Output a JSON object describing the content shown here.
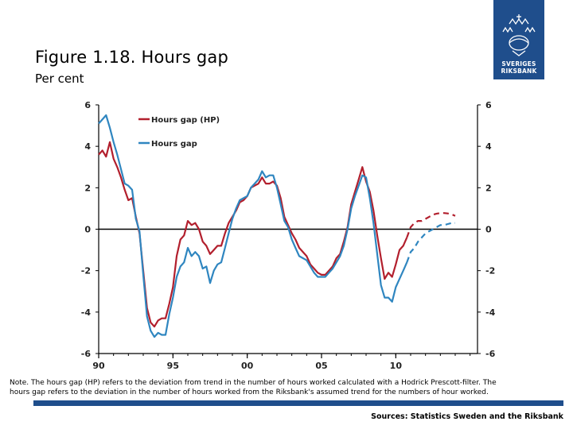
{
  "header": {
    "title": "Figure 1.18. Hours gap",
    "subtitle": "Per cent"
  },
  "logo": {
    "line1": "SVERIGES",
    "line2": "RIKSBANK"
  },
  "footer": {
    "note": "Note. The hours gap (HP) refers to the deviation from trend in the number of hours worked calculated with a Hodrick Prescott-filter. The hours gap refers to the deviation in the number of hours worked from the Riksbank's assumed trend for the numbers of hour worked.",
    "source": "Sources: Statistics Sweden and the Riksbank"
  },
  "colors": {
    "hp": "#b21f2d",
    "gap": "#2f86c0",
    "brand": "#1f4e8c"
  },
  "chart_data": {
    "type": "line",
    "title": "Figure 1.18. Hours gap",
    "ylabel": "Per cent",
    "xlim": [
      1990,
      2015.5
    ],
    "ylim": [
      -6,
      6
    ],
    "x_ticks": [
      1990,
      1995,
      2000,
      2005,
      2010
    ],
    "x_tick_labels": [
      "90",
      "95",
      "00",
      "05",
      "10"
    ],
    "y_ticks": [
      6,
      4,
      2,
      0,
      -2,
      -4,
      -6
    ],
    "y_tick_labels": [
      "6",
      "4",
      "2",
      "0",
      "-2",
      "-4",
      "-6"
    ],
    "zero_line": true,
    "series": [
      {
        "name": "Hours gap (HP)",
        "color": "#b21f2d",
        "forecast_from": 2010.75,
        "points": [
          [
            1990.0,
            3.6
          ],
          [
            1990.25,
            3.8
          ],
          [
            1990.5,
            3.5
          ],
          [
            1990.75,
            4.2
          ],
          [
            1991.0,
            3.4
          ],
          [
            1991.25,
            3.0
          ],
          [
            1991.5,
            2.5
          ],
          [
            1991.75,
            1.9
          ],
          [
            1992.0,
            1.4
          ],
          [
            1992.25,
            1.5
          ],
          [
            1992.5,
            0.6
          ],
          [
            1992.75,
            -0.2
          ],
          [
            1993.0,
            -2.0
          ],
          [
            1993.25,
            -3.8
          ],
          [
            1993.5,
            -4.5
          ],
          [
            1993.75,
            -4.7
          ],
          [
            1994.0,
            -4.4
          ],
          [
            1994.25,
            -4.3
          ],
          [
            1994.5,
            -4.3
          ],
          [
            1994.75,
            -3.6
          ],
          [
            1995.0,
            -2.8
          ],
          [
            1995.25,
            -1.3
          ],
          [
            1995.5,
            -0.5
          ],
          [
            1995.75,
            -0.3
          ],
          [
            1996.0,
            0.4
          ],
          [
            1996.25,
            0.2
          ],
          [
            1996.5,
            0.3
          ],
          [
            1996.75,
            0.0
          ],
          [
            1997.0,
            -0.6
          ],
          [
            1997.25,
            -0.8
          ],
          [
            1997.5,
            -1.2
          ],
          [
            1997.75,
            -1.0
          ],
          [
            1998.0,
            -0.8
          ],
          [
            1998.25,
            -0.8
          ],
          [
            1998.5,
            -0.2
          ],
          [
            1998.75,
            0.3
          ],
          [
            1999.0,
            0.6
          ],
          [
            1999.25,
            0.9
          ],
          [
            1999.5,
            1.3
          ],
          [
            1999.75,
            1.4
          ],
          [
            2000.0,
            1.6
          ],
          [
            2000.25,
            2.0
          ],
          [
            2000.5,
            2.1
          ],
          [
            2000.75,
            2.2
          ],
          [
            2001.0,
            2.5
          ],
          [
            2001.25,
            2.2
          ],
          [
            2001.5,
            2.2
          ],
          [
            2001.75,
            2.3
          ],
          [
            2002.0,
            2.1
          ],
          [
            2002.25,
            1.5
          ],
          [
            2002.5,
            0.6
          ],
          [
            2002.75,
            0.2
          ],
          [
            2003.0,
            -0.2
          ],
          [
            2003.25,
            -0.5
          ],
          [
            2003.5,
            -0.9
          ],
          [
            2003.75,
            -1.1
          ],
          [
            2004.0,
            -1.3
          ],
          [
            2004.25,
            -1.7
          ],
          [
            2004.5,
            -1.9
          ],
          [
            2004.75,
            -2.1
          ],
          [
            2005.0,
            -2.2
          ],
          [
            2005.25,
            -2.2
          ],
          [
            2005.5,
            -2.0
          ],
          [
            2005.75,
            -1.8
          ],
          [
            2006.0,
            -1.4
          ],
          [
            2006.25,
            -1.2
          ],
          [
            2006.5,
            -0.6
          ],
          [
            2006.75,
            0.1
          ],
          [
            2007.0,
            1.2
          ],
          [
            2007.25,
            1.8
          ],
          [
            2007.5,
            2.4
          ],
          [
            2007.75,
            3.0
          ],
          [
            2008.0,
            2.3
          ],
          [
            2008.25,
            1.8
          ],
          [
            2008.5,
            0.9
          ],
          [
            2008.75,
            -0.3
          ],
          [
            2009.0,
            -1.4
          ],
          [
            2009.25,
            -2.4
          ],
          [
            2009.5,
            -2.1
          ],
          [
            2009.75,
            -2.3
          ],
          [
            2010.0,
            -1.7
          ],
          [
            2010.25,
            -1.0
          ],
          [
            2010.5,
            -0.8
          ],
          [
            2010.75,
            -0.4
          ],
          [
            2011.0,
            0.1
          ],
          [
            2011.25,
            0.3
          ],
          [
            2011.5,
            0.4
          ],
          [
            2011.75,
            0.4
          ],
          [
            2012.0,
            0.5
          ],
          [
            2012.25,
            0.6
          ],
          [
            2012.5,
            0.7
          ],
          [
            2012.75,
            0.75
          ],
          [
            2013.0,
            0.78
          ],
          [
            2013.25,
            0.78
          ],
          [
            2013.5,
            0.76
          ],
          [
            2013.75,
            0.72
          ],
          [
            2014.0,
            0.64
          ]
        ]
      },
      {
        "name": "Hours gap",
        "color": "#2f86c0",
        "forecast_from": 2010.75,
        "points": [
          [
            1990.0,
            5.1
          ],
          [
            1990.25,
            5.3
          ],
          [
            1990.5,
            5.5
          ],
          [
            1990.75,
            4.9
          ],
          [
            1991.0,
            4.2
          ],
          [
            1991.25,
            3.6
          ],
          [
            1991.5,
            2.9
          ],
          [
            1991.75,
            2.2
          ],
          [
            1992.0,
            2.1
          ],
          [
            1992.25,
            1.9
          ],
          [
            1992.5,
            0.5
          ],
          [
            1992.75,
            -0.1
          ],
          [
            1993.0,
            -2.2
          ],
          [
            1993.25,
            -4.2
          ],
          [
            1993.5,
            -4.9
          ],
          [
            1993.75,
            -5.2
          ],
          [
            1994.0,
            -5.0
          ],
          [
            1994.25,
            -5.1
          ],
          [
            1994.5,
            -5.1
          ],
          [
            1994.75,
            -4.1
          ],
          [
            1995.0,
            -3.3
          ],
          [
            1995.25,
            -2.3
          ],
          [
            1995.5,
            -1.8
          ],
          [
            1995.75,
            -1.6
          ],
          [
            1996.0,
            -0.9
          ],
          [
            1996.25,
            -1.3
          ],
          [
            1996.5,
            -1.1
          ],
          [
            1996.75,
            -1.3
          ],
          [
            1997.0,
            -1.9
          ],
          [
            1997.25,
            -1.8
          ],
          [
            1997.5,
            -2.6
          ],
          [
            1997.75,
            -2.0
          ],
          [
            1998.0,
            -1.7
          ],
          [
            1998.25,
            -1.6
          ],
          [
            1998.5,
            -0.9
          ],
          [
            1998.75,
            -0.2
          ],
          [
            1999.0,
            0.5
          ],
          [
            1999.25,
            1.0
          ],
          [
            1999.5,
            1.4
          ],
          [
            1999.75,
            1.5
          ],
          [
            2000.0,
            1.6
          ],
          [
            2000.25,
            2.0
          ],
          [
            2000.5,
            2.2
          ],
          [
            2000.75,
            2.4
          ],
          [
            2001.0,
            2.8
          ],
          [
            2001.25,
            2.5
          ],
          [
            2001.5,
            2.6
          ],
          [
            2001.75,
            2.6
          ],
          [
            2002.0,
            2.0
          ],
          [
            2002.25,
            1.2
          ],
          [
            2002.5,
            0.4
          ],
          [
            2002.75,
            0.1
          ],
          [
            2003.0,
            -0.5
          ],
          [
            2003.25,
            -0.9
          ],
          [
            2003.5,
            -1.3
          ],
          [
            2003.75,
            -1.4
          ],
          [
            2004.0,
            -1.5
          ],
          [
            2004.25,
            -1.8
          ],
          [
            2004.5,
            -2.1
          ],
          [
            2004.75,
            -2.3
          ],
          [
            2005.0,
            -2.3
          ],
          [
            2005.25,
            -2.3
          ],
          [
            2005.5,
            -2.1
          ],
          [
            2005.75,
            -1.9
          ],
          [
            2006.0,
            -1.6
          ],
          [
            2006.25,
            -1.3
          ],
          [
            2006.5,
            -0.8
          ],
          [
            2006.75,
            0.0
          ],
          [
            2007.0,
            1.0
          ],
          [
            2007.25,
            1.6
          ],
          [
            2007.5,
            2.1
          ],
          [
            2007.75,
            2.6
          ],
          [
            2008.0,
            2.5
          ],
          [
            2008.25,
            1.5
          ],
          [
            2008.5,
            0.3
          ],
          [
            2008.75,
            -1.2
          ],
          [
            2009.0,
            -2.7
          ],
          [
            2009.25,
            -3.3
          ],
          [
            2009.5,
            -3.3
          ],
          [
            2009.75,
            -3.5
          ],
          [
            2010.0,
            -2.8
          ],
          [
            2010.25,
            -2.4
          ],
          [
            2010.5,
            -2.0
          ],
          [
            2010.75,
            -1.6
          ],
          [
            2011.0,
            -1.1
          ],
          [
            2011.25,
            -0.9
          ],
          [
            2011.5,
            -0.6
          ],
          [
            2011.75,
            -0.4
          ],
          [
            2012.0,
            -0.2
          ],
          [
            2012.25,
            -0.1
          ],
          [
            2012.5,
            0.0
          ],
          [
            2012.75,
            0.1
          ],
          [
            2013.0,
            0.2
          ],
          [
            2013.25,
            0.2
          ],
          [
            2013.5,
            0.25
          ],
          [
            2013.75,
            0.3
          ],
          [
            2014.0,
            0.3
          ]
        ]
      }
    ],
    "legend": [
      {
        "label": "Hours gap (HP)",
        "color": "#b21f2d"
      },
      {
        "label": "Hours gap",
        "color": "#2f86c0"
      }
    ]
  }
}
